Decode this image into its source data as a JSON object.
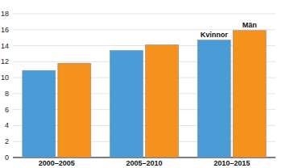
{
  "chart_data": {
    "type": "bar",
    "categories": [
      "2000–2005",
      "2005–2010",
      "2010–2015"
    ],
    "series": [
      {
        "name": "Kvinnor",
        "color": "#4a9cd6",
        "values": [
          10.9,
          13.4,
          14.7
        ]
      },
      {
        "name": "Män",
        "color": "#f5921e",
        "values": [
          11.8,
          14.1,
          15.9
        ]
      }
    ],
    "ylim": [
      0,
      18
    ],
    "yticks": [
      0,
      2,
      4,
      6,
      8,
      10,
      12,
      14,
      16,
      18
    ],
    "grid": true
  }
}
